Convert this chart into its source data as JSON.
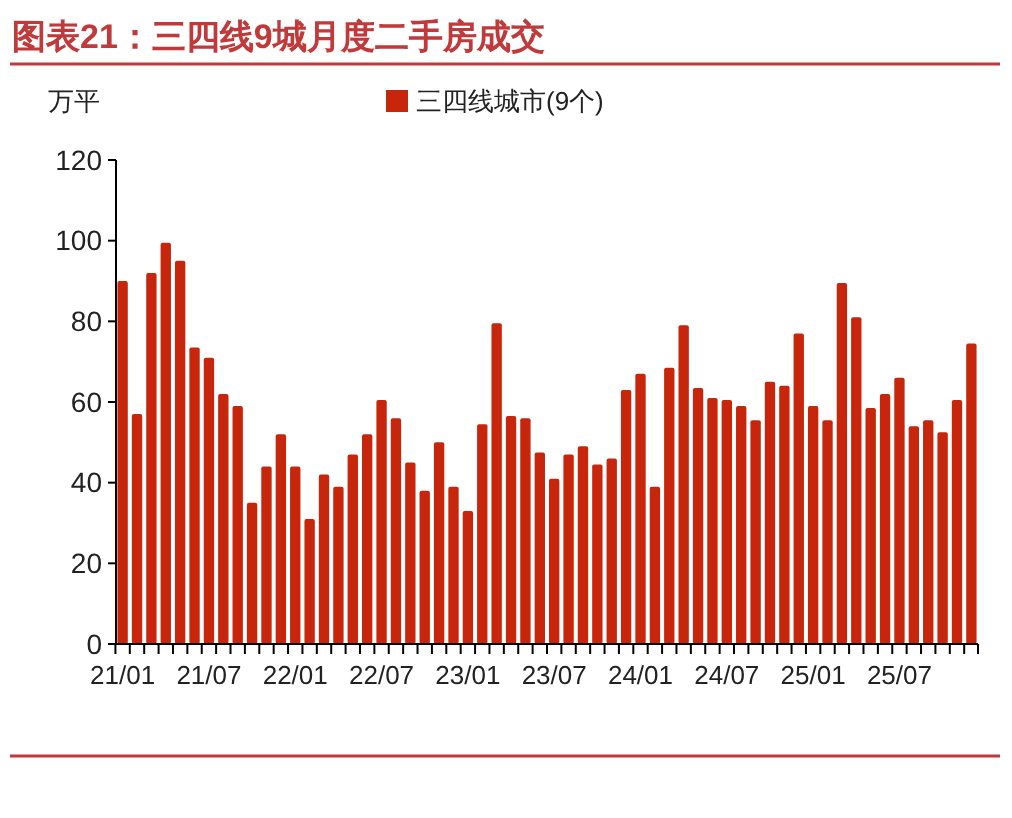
{
  "chart_data": {
    "type": "bar",
    "title": "图表21：三四线9城月度二手房成交",
    "ylabel": "万平",
    "categories": [
      "21/01",
      null,
      null,
      null,
      null,
      null,
      "21/07",
      null,
      null,
      null,
      null,
      null,
      "22/01",
      null,
      null,
      null,
      null,
      null,
      "22/07",
      null,
      null,
      null,
      null,
      null,
      "23/01",
      null,
      null,
      null,
      null,
      null,
      "23/07",
      null,
      null,
      null,
      null,
      null,
      "24/01",
      null,
      null,
      null,
      null,
      null,
      "24/07",
      null,
      null,
      null,
      null,
      null,
      "25/01",
      null,
      null,
      null,
      null,
      null,
      "25/07",
      null,
      null,
      null,
      null,
      null
    ],
    "series": [
      {
        "name": "三四线城市(9个)",
        "color": "#c8260c",
        "values": [
          90,
          57,
          92,
          99.5,
          95,
          73.5,
          71,
          62,
          59,
          35,
          44,
          52,
          44,
          31,
          42,
          39,
          47,
          52,
          60.5,
          56,
          45,
          38,
          50,
          39,
          33,
          54.5,
          79.5,
          56.5,
          56,
          47.5,
          41,
          47,
          49,
          44.5,
          46,
          63,
          67,
          39,
          68.5,
          79,
          63.5,
          61,
          60.5,
          59,
          55.5,
          65,
          64,
          77,
          59,
          55.5,
          89.5,
          81,
          58.5,
          62,
          66,
          54,
          55.5,
          52.5,
          60.5,
          74.5
        ]
      }
    ],
    "ylim": [
      0,
      120
    ],
    "yticks": [
      0,
      20,
      40,
      60,
      80,
      100,
      120
    ],
    "grid": false,
    "legend": "top"
  }
}
